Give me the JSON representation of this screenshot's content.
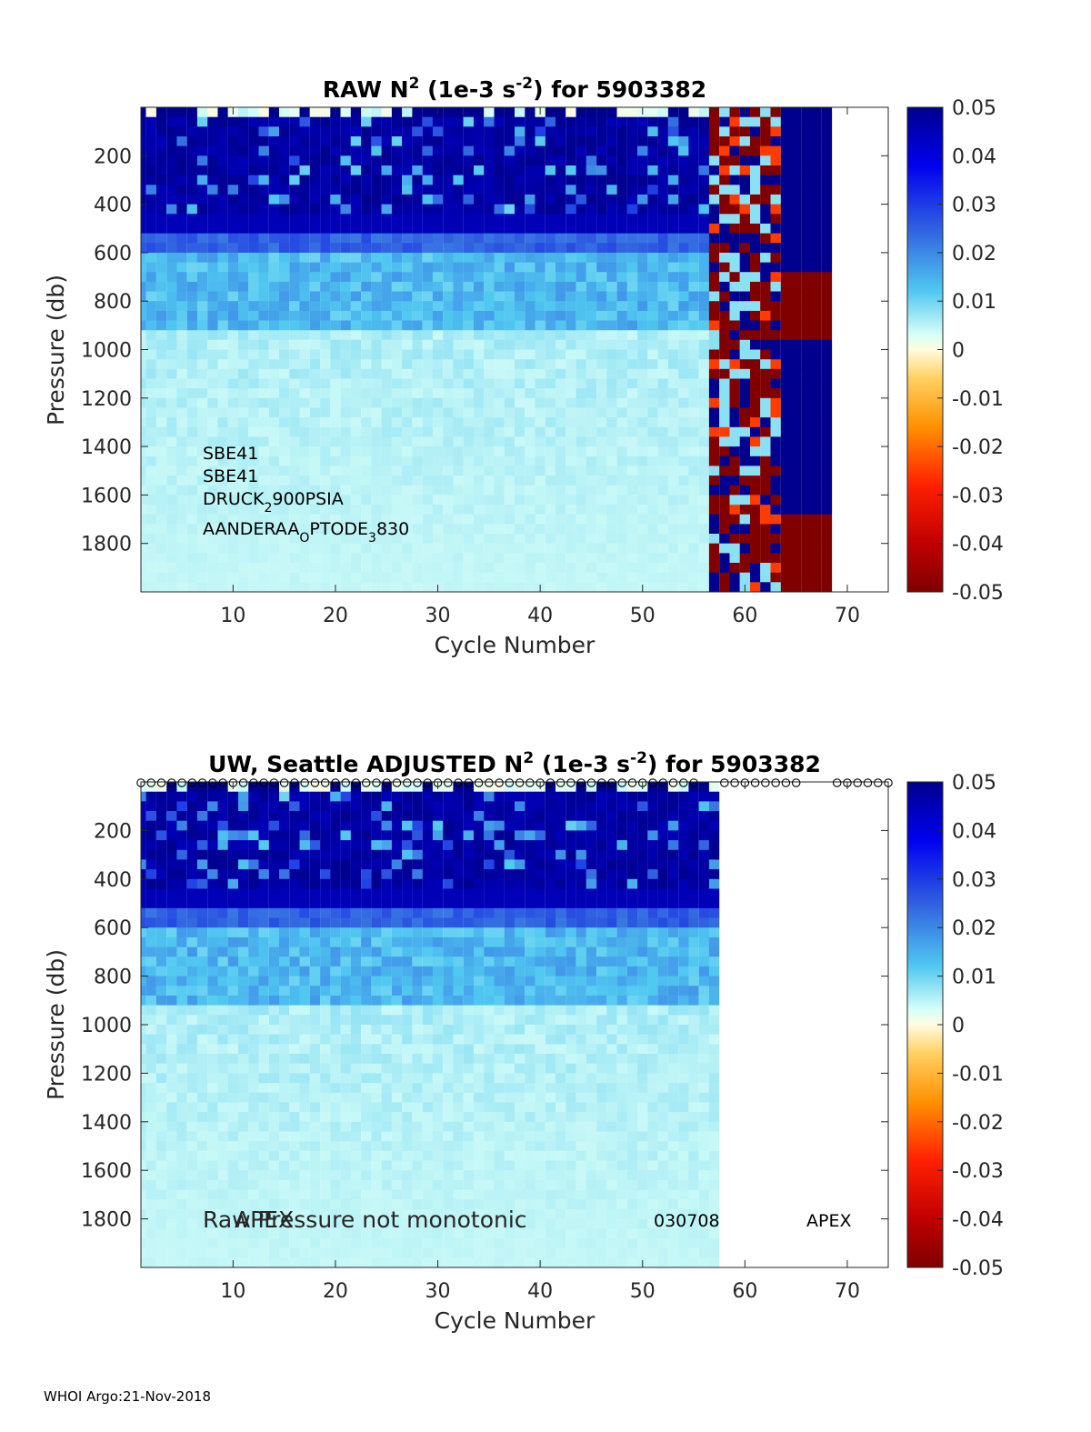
{
  "chart_data": [
    {
      "type": "heatmap",
      "title_main": "RAW N",
      "title_sup": "2",
      "title_mid": " (1e-3 s",
      "title_sup2": "-2",
      "title_end": ") for 5903382",
      "xlabel": "Cycle Number",
      "ylabel": "Pressure (db)",
      "xlim": [
        1,
        74
      ],
      "ylim": [
        2000,
        0
      ],
      "xticks": [
        10,
        20,
        30,
        40,
        50,
        60,
        70
      ],
      "yticks": [
        200,
        400,
        600,
        800,
        1000,
        1200,
        1400,
        1600,
        1800
      ],
      "colorbar": {
        "min": -0.05,
        "max": 0.05,
        "ticks": [
          "0.05",
          "0.04",
          "0.03",
          "0.02",
          "0.01",
          "0",
          "-0.01",
          "-0.02",
          "-0.03",
          "-0.04",
          "-0.05"
        ]
      },
      "data_cycles": [
        1,
        68
      ],
      "annotations": {
        "line1": "SBE41",
        "line2": "SBE41",
        "line3_a": "DRUCK",
        "line3_sub": "2",
        "line3_b": "900PSIA",
        "line4_a": "AANDERAA",
        "line4_sub": "O",
        "line4_b": "PTODE",
        "line4_sub2": "3",
        "line4_c": "830"
      }
    },
    {
      "type": "heatmap",
      "title_main": "UW, Seattle  ADJUSTED N",
      "title_sup": "2",
      "title_mid": " (1e-3 s",
      "title_sup2": "-2",
      "title_end": ") for 5903382",
      "xlabel": "Cycle Number",
      "ylabel": "Pressure (db)",
      "xlim": [
        1,
        74
      ],
      "ylim": [
        2000,
        0
      ],
      "xticks": [
        10,
        20,
        30,
        40,
        50,
        60,
        70
      ],
      "yticks": [
        200,
        400,
        600,
        800,
        1000,
        1200,
        1400,
        1600,
        1800
      ],
      "colorbar": {
        "min": -0.05,
        "max": 0.05,
        "ticks": [
          "0.05",
          "0.04",
          "0.03",
          "0.02",
          "0.01",
          "0",
          "-0.01",
          "-0.02",
          "-0.03",
          "-0.04",
          "-0.05"
        ]
      },
      "data_cycles": [
        1,
        57
      ],
      "qc_marker": "o",
      "annotations": {
        "note1": "Raw Pressure not monotonic",
        "note2": "APEX",
        "firmware": "030708",
        "platform": "APEX"
      }
    }
  ],
  "footer": "WHOI Argo:21-Nov-2018"
}
